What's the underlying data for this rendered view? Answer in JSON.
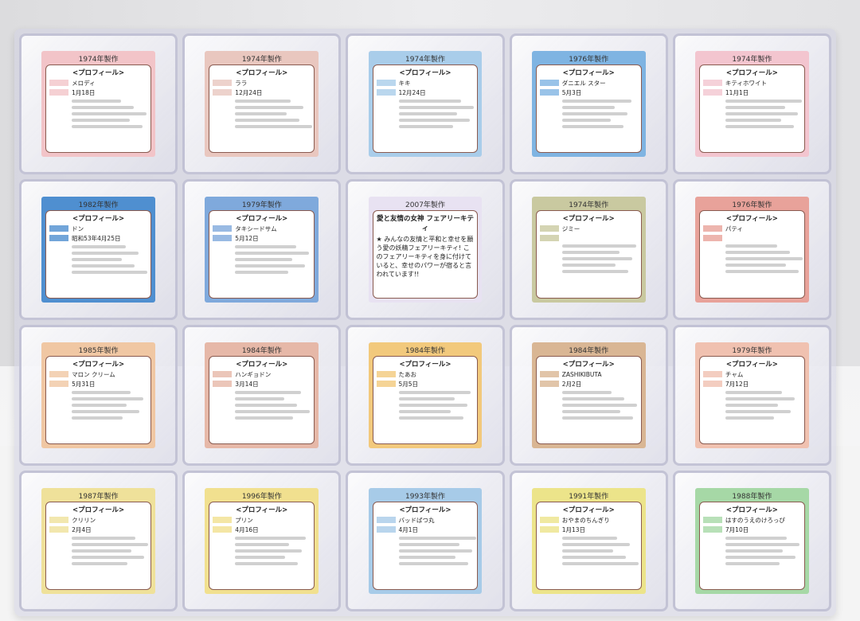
{
  "profile_heading": "<プロフィール>",
  "cards": [
    {
      "year": "1974年製作",
      "name": "メロディ",
      "birthday": "1月18日",
      "color": "#f2c4c8"
    },
    {
      "year": "1974年製作",
      "name": "ララ",
      "birthday": "12月24日",
      "color": "#e9c7bf"
    },
    {
      "year": "1974年製作",
      "name": "キキ",
      "birthday": "12月24日",
      "color": "#a9cdea"
    },
    {
      "year": "1976年製作",
      "name": "ダニエル スター",
      "birthday": "5月3日",
      "color": "#7fb4e2"
    },
    {
      "year": "1974年製作",
      "name": "キティホワイト",
      "birthday": "11月1日",
      "color": "#f3c5cf"
    },
    {
      "year": "1982年製作",
      "name": "ドン",
      "birthday": "昭和53年4月25日",
      "color": "#4f8fd0"
    },
    {
      "year": "1979年製作",
      "name": "タキシードサム",
      "birthday": "5月12日",
      "color": "#7fa9dc"
    },
    {
      "year": "2007年製作",
      "title": "愛と友情の女神 フェアリーキティ",
      "text": "★ みんなの友情と平和と幸せを願う愛の妖精フェアリーキティ! このフェアリーキティを身に付けていると、幸せのパワーが宿ると言われています!!",
      "color": "#e8e2f2"
    },
    {
      "year": "1974年製作",
      "name": "ジミー",
      "birthday": "",
      "color": "#c9c9a0"
    },
    {
      "year": "1976年製作",
      "name": "パティ",
      "birthday": "",
      "color": "#e8a29a"
    },
    {
      "year": "1985年製作",
      "name": "マロン クリーム",
      "birthday": "5月31日",
      "color": "#f0c7a3"
    },
    {
      "year": "1984年製作",
      "name": "ハンギョドン",
      "birthday": "3月14日",
      "color": "#e6b8a8"
    },
    {
      "year": "1984年製作",
      "name": "たあお",
      "birthday": "5月5日",
      "color": "#f2c97c"
    },
    {
      "year": "1984年製作",
      "name": "ZASHIKIBUTA",
      "birthday": "2月2日",
      "color": "#d9b694"
    },
    {
      "year": "1979年製作",
      "name": "チャム",
      "birthday": "7月12日",
      "color": "#f0c1b0"
    },
    {
      "year": "1987年製作",
      "name": "クリリン",
      "birthday": "2月4日",
      "color": "#efe19a"
    },
    {
      "year": "1996年製作",
      "name": "プリン",
      "birthday": "4月16日",
      "color": "#f1e08f"
    },
    {
      "year": "1993年製作",
      "name": "バッドばつ丸",
      "birthday": "4月1日",
      "color": "#a7cbe8"
    },
    {
      "year": "1991年製作",
      "name": "おやまのちんぎり",
      "birthday": "1月13日",
      "color": "#ece48a"
    },
    {
      "year": "1988年製作",
      "name": "はすのうえのけろっぴ",
      "birthday": "7月10日",
      "color": "#a6d8a6"
    }
  ]
}
